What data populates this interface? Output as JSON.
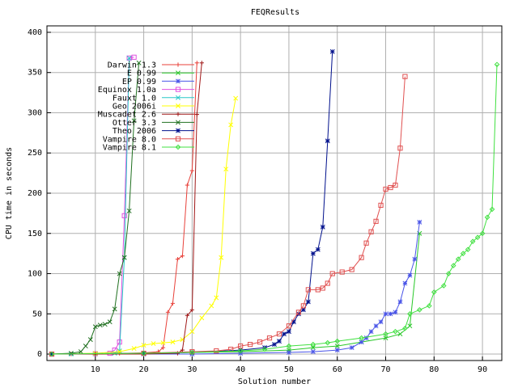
{
  "chart_data": {
    "type": "line",
    "title": "FEQResults",
    "xlabel": "Solution number",
    "ylabel": "CPU time in seconds",
    "xlim": [
      0,
      94
    ],
    "ylim": [
      -8,
      408
    ],
    "x_ticks": [
      10,
      20,
      30,
      40,
      50,
      60,
      70,
      80,
      90
    ],
    "y_ticks": [
      0,
      50,
      100,
      150,
      200,
      250,
      300,
      350,
      400
    ],
    "grid": true,
    "legend_position": "top-left",
    "series": [
      {
        "name": "Darwin 1.3",
        "color": "#e8413a",
        "marker": "plus",
        "points": [
          [
            1,
            0
          ],
          [
            5,
            0
          ],
          [
            10,
            0.3
          ],
          [
            15,
            0.8
          ],
          [
            20,
            1.5
          ],
          [
            23,
            3
          ],
          [
            24,
            8
          ],
          [
            25,
            52
          ],
          [
            26,
            63
          ],
          [
            27,
            118
          ],
          [
            28,
            122
          ],
          [
            29,
            210
          ],
          [
            30,
            228
          ],
          [
            31,
            362
          ]
        ]
      },
      {
        "name": "E 0.99",
        "color": "#28c828",
        "marker": "x",
        "points": [
          [
            1,
            0
          ],
          [
            10,
            0.5
          ],
          [
            20,
            1
          ],
          [
            30,
            2
          ],
          [
            40,
            3
          ],
          [
            50,
            5
          ],
          [
            55,
            8
          ],
          [
            60,
            10
          ],
          [
            65,
            15
          ],
          [
            70,
            20
          ],
          [
            73,
            25
          ],
          [
            75,
            35
          ],
          [
            77,
            150
          ]
        ]
      },
      {
        "name": "EP 0.99",
        "color": "#4a55e8",
        "marker": "star",
        "points": [
          [
            1,
            0
          ],
          [
            20,
            0
          ],
          [
            30,
            0
          ],
          [
            40,
            1
          ],
          [
            50,
            2
          ],
          [
            55,
            3
          ],
          [
            60,
            5
          ],
          [
            63,
            8
          ],
          [
            65,
            15
          ],
          [
            66,
            20
          ],
          [
            67,
            28
          ],
          [
            68,
            35
          ],
          [
            69,
            40
          ],
          [
            70,
            50
          ],
          [
            71,
            50
          ],
          [
            72,
            52
          ],
          [
            73,
            65
          ],
          [
            74,
            88
          ],
          [
            75,
            98
          ],
          [
            76,
            118
          ],
          [
            77,
            164
          ]
        ]
      },
      {
        "name": "Equinox 1.0a",
        "color": "#e050e0",
        "marker": "square",
        "points": [
          [
            1,
            0
          ],
          [
            10,
            0.5
          ],
          [
            13,
            1
          ],
          [
            14,
            5
          ],
          [
            15,
            15
          ],
          [
            16,
            172
          ],
          [
            17,
            368
          ],
          [
            18,
            369
          ]
        ]
      },
      {
        "name": "Fauxt 1.0",
        "color": "#28c8c8",
        "marker": "x",
        "points": [
          [
            1,
            0
          ],
          [
            5,
            0
          ],
          [
            10,
            0.5
          ],
          [
            14,
            1
          ],
          [
            15,
            4
          ],
          [
            16,
            120
          ],
          [
            17,
            368
          ]
        ]
      },
      {
        "name": "Geo 2006i",
        "color": "#ffff00",
        "marker": "x",
        "points": [
          [
            1,
            0
          ],
          [
            10,
            1
          ],
          [
            15,
            3
          ],
          [
            18,
            7
          ],
          [
            20,
            11
          ],
          [
            22,
            13
          ],
          [
            24,
            14
          ],
          [
            26,
            15
          ],
          [
            28,
            18
          ],
          [
            30,
            28
          ],
          [
            32,
            45
          ],
          [
            34,
            60
          ],
          [
            35,
            70
          ],
          [
            36,
            120
          ],
          [
            37,
            230
          ],
          [
            38,
            285
          ],
          [
            39,
            318
          ]
        ]
      },
      {
        "name": "Muscadet 2.6",
        "color": "#a01818",
        "marker": "plus",
        "points": [
          [
            1,
            0
          ],
          [
            10,
            0
          ],
          [
            20,
            0
          ],
          [
            27,
            1
          ],
          [
            28,
            5
          ],
          [
            29,
            48
          ],
          [
            30,
            55
          ],
          [
            31,
            298
          ],
          [
            32,
            362
          ]
        ]
      },
      {
        "name": "Otter 3.3",
        "color": "#207020",
        "marker": "x",
        "points": [
          [
            1,
            0
          ],
          [
            5,
            1
          ],
          [
            7,
            3
          ],
          [
            8,
            10
          ],
          [
            9,
            18
          ],
          [
            10,
            34
          ],
          [
            11,
            36
          ],
          [
            12,
            37
          ],
          [
            13,
            40
          ],
          [
            14,
            56
          ],
          [
            15,
            100
          ],
          [
            16,
            120
          ],
          [
            17,
            178
          ],
          [
            18,
            290
          ],
          [
            19,
            362
          ]
        ]
      },
      {
        "name": "Theo 2006",
        "color": "#00108c",
        "marker": "star",
        "points": [
          [
            1,
            0
          ],
          [
            20,
            1
          ],
          [
            30,
            2
          ],
          [
            40,
            5
          ],
          [
            45,
            8
          ],
          [
            47,
            12
          ],
          [
            48,
            16
          ],
          [
            49,
            25
          ],
          [
            50,
            28
          ],
          [
            51,
            40
          ],
          [
            52,
            50
          ],
          [
            53,
            55
          ],
          [
            54,
            65
          ],
          [
            55,
            125
          ],
          [
            56,
            130
          ],
          [
            57,
            158
          ],
          [
            58,
            265
          ],
          [
            59,
            376
          ]
        ]
      },
      {
        "name": "Vampire 8.0",
        "color": "#e05050",
        "marker": "square",
        "points": [
          [
            1,
            0
          ],
          [
            20,
            1
          ],
          [
            30,
            3
          ],
          [
            35,
            4
          ],
          [
            38,
            6
          ],
          [
            40,
            10
          ],
          [
            42,
            12
          ],
          [
            44,
            15
          ],
          [
            46,
            20
          ],
          [
            48,
            25
          ],
          [
            50,
            35
          ],
          [
            52,
            52
          ],
          [
            53,
            60
          ],
          [
            54,
            80
          ],
          [
            56,
            80
          ],
          [
            57,
            82
          ],
          [
            58,
            88
          ],
          [
            59,
            100
          ],
          [
            61,
            102
          ],
          [
            63,
            105
          ],
          [
            65,
            120
          ],
          [
            66,
            138
          ],
          [
            67,
            152
          ],
          [
            68,
            165
          ],
          [
            69,
            185
          ],
          [
            70,
            205
          ],
          [
            71,
            207
          ],
          [
            72,
            210
          ],
          [
            73,
            256
          ],
          [
            74,
            345
          ]
        ]
      },
      {
        "name": "Vampire 8.1",
        "color": "#40e040",
        "marker": "diamond",
        "points": [
          [
            1,
            0
          ],
          [
            20,
            1
          ],
          [
            30,
            2
          ],
          [
            40,
            4
          ],
          [
            45,
            6
          ],
          [
            50,
            10
          ],
          [
            55,
            12
          ],
          [
            58,
            14
          ],
          [
            60,
            16
          ],
          [
            65,
            20
          ],
          [
            70,
            25
          ],
          [
            72,
            28
          ],
          [
            74,
            32
          ],
          [
            75,
            50
          ],
          [
            77,
            55
          ],
          [
            79,
            60
          ],
          [
            80,
            77
          ],
          [
            82,
            85
          ],
          [
            83,
            100
          ],
          [
            84,
            110
          ],
          [
            85,
            118
          ],
          [
            86,
            125
          ],
          [
            87,
            130
          ],
          [
            88,
            140
          ],
          [
            89,
            145
          ],
          [
            90,
            150
          ],
          [
            91,
            170
          ],
          [
            92,
            180
          ],
          [
            93,
            360
          ]
        ]
      }
    ]
  }
}
